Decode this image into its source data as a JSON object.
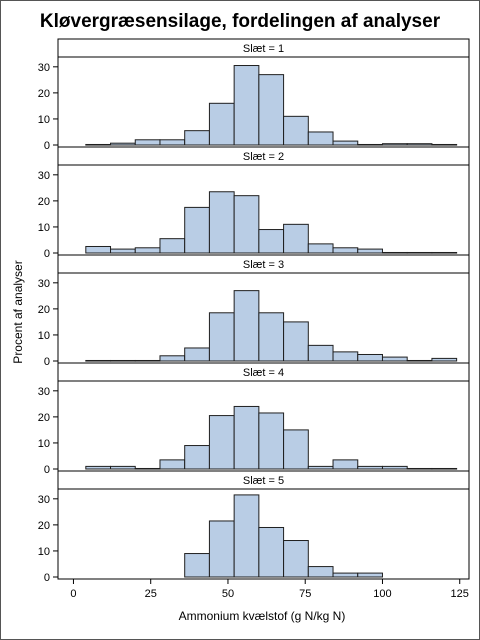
{
  "title": "Kløvergræsensilage, fordelingen af analyser",
  "chart_data": {
    "type": "bar",
    "title": "Kløvergræsensilage, fordelingen af analyser",
    "xlabel": "Ammonium kvælstof (g N/kg N)",
    "ylabel": "Procent af analyser",
    "xlim": [
      -5,
      128
    ],
    "ylim": [
      0,
      33
    ],
    "xticks": [
      0,
      25,
      50,
      75,
      100,
      125
    ],
    "yticks": [
      0,
      10,
      20,
      30
    ],
    "bin_width": 8,
    "bar_color": "#b9cde5",
    "bar_edge_color": "#1f1f1f",
    "grid": false,
    "panels": [
      {
        "strip_label": "Slæt = 1",
        "bins": [
          {
            "x0": 4,
            "value": 0.2
          },
          {
            "x0": 12,
            "value": 0.7
          },
          {
            "x0": 20,
            "value": 2.0
          },
          {
            "x0": 28,
            "value": 2.0
          },
          {
            "x0": 36,
            "value": 5.5
          },
          {
            "x0": 44,
            "value": 16.0
          },
          {
            "x0": 52,
            "value": 30.5
          },
          {
            "x0": 60,
            "value": 27.0
          },
          {
            "x0": 68,
            "value": 11.0
          },
          {
            "x0": 76,
            "value": 5.0
          },
          {
            "x0": 84,
            "value": 1.5
          },
          {
            "x0": 92,
            "value": 0.2
          },
          {
            "x0": 100,
            "value": 0.5
          },
          {
            "x0": 108,
            "value": 0.5
          },
          {
            "x0": 116,
            "value": 0.2
          }
        ]
      },
      {
        "strip_label": "Slæt = 2",
        "bins": [
          {
            "x0": 4,
            "value": 2.5
          },
          {
            "x0": 12,
            "value": 1.5
          },
          {
            "x0": 20,
            "value": 2.0
          },
          {
            "x0": 28,
            "value": 5.5
          },
          {
            "x0": 36,
            "value": 17.5
          },
          {
            "x0": 44,
            "value": 23.5
          },
          {
            "x0": 52,
            "value": 22.0
          },
          {
            "x0": 60,
            "value": 9.0
          },
          {
            "x0": 68,
            "value": 11.0
          },
          {
            "x0": 76,
            "value": 3.5
          },
          {
            "x0": 84,
            "value": 2.0
          },
          {
            "x0": 92,
            "value": 1.5
          },
          {
            "x0": 100,
            "value": 0.2
          },
          {
            "x0": 108,
            "value": 0.2
          },
          {
            "x0": 116,
            "value": 0.2
          }
        ]
      },
      {
        "strip_label": "Slæt = 3",
        "bins": [
          {
            "x0": 4,
            "value": 0.2
          },
          {
            "x0": 12,
            "value": 0.2
          },
          {
            "x0": 20,
            "value": 0.2
          },
          {
            "x0": 28,
            "value": 2.0
          },
          {
            "x0": 36,
            "value": 5.0
          },
          {
            "x0": 44,
            "value": 18.5
          },
          {
            "x0": 52,
            "value": 27.0
          },
          {
            "x0": 60,
            "value": 18.5
          },
          {
            "x0": 68,
            "value": 15.0
          },
          {
            "x0": 76,
            "value": 6.0
          },
          {
            "x0": 84,
            "value": 3.5
          },
          {
            "x0": 92,
            "value": 2.5
          },
          {
            "x0": 100,
            "value": 1.5
          },
          {
            "x0": 108,
            "value": 0.2
          },
          {
            "x0": 116,
            "value": 1.0
          }
        ]
      },
      {
        "strip_label": "Slæt = 4",
        "bins": [
          {
            "x0": 4,
            "value": 1.0
          },
          {
            "x0": 12,
            "value": 1.0
          },
          {
            "x0": 20,
            "value": 0.2
          },
          {
            "x0": 28,
            "value": 3.5
          },
          {
            "x0": 36,
            "value": 9.0
          },
          {
            "x0": 44,
            "value": 20.5
          },
          {
            "x0": 52,
            "value": 24.0
          },
          {
            "x0": 60,
            "value": 21.5
          },
          {
            "x0": 68,
            "value": 15.0
          },
          {
            "x0": 76,
            "value": 1.0
          },
          {
            "x0": 84,
            "value": 3.5
          },
          {
            "x0": 92,
            "value": 1.0
          },
          {
            "x0": 100,
            "value": 1.0
          },
          {
            "x0": 108,
            "value": 0.2
          },
          {
            "x0": 116,
            "value": 0.2
          }
        ]
      },
      {
        "strip_label": "Slæt = 5",
        "bins": [
          {
            "x0": 36,
            "value": 9.0
          },
          {
            "x0": 44,
            "value": 21.5
          },
          {
            "x0": 52,
            "value": 31.5
          },
          {
            "x0": 60,
            "value": 19.0
          },
          {
            "x0": 68,
            "value": 14.0
          },
          {
            "x0": 76,
            "value": 4.0
          },
          {
            "x0": 84,
            "value": 1.5
          },
          {
            "x0": 92,
            "value": 1.5
          }
        ]
      }
    ]
  }
}
